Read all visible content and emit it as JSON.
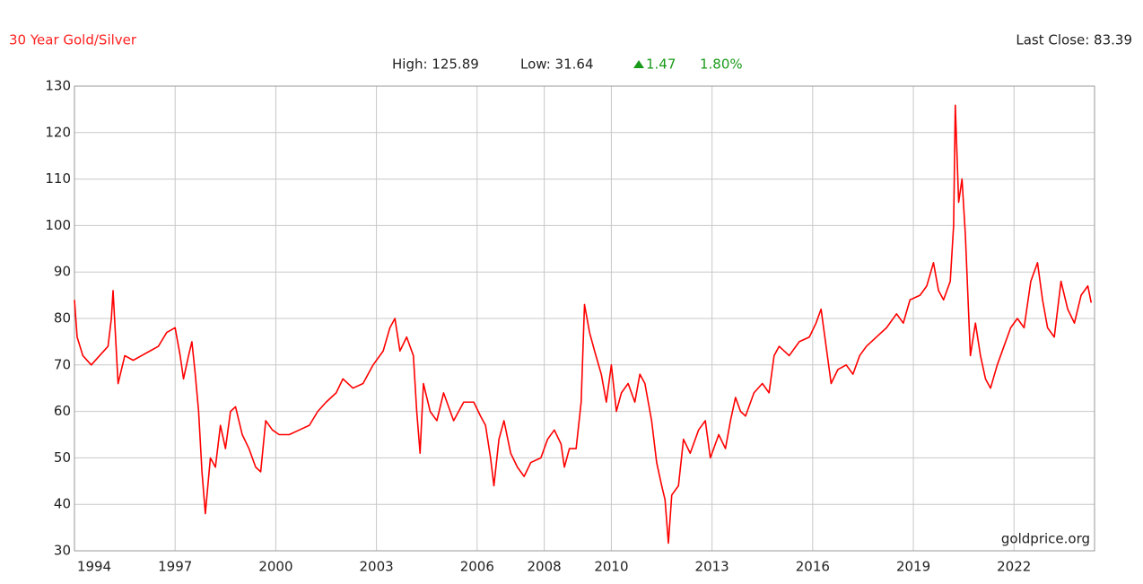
{
  "chart_data": {
    "type": "line",
    "title": "30 Year Gold/Silver",
    "high": "High: 125.89",
    "low": "Low: 31.64",
    "change": "1.47",
    "change_percent": "1.80%",
    "last_close": "Last Close: 83.39",
    "watermark": "goldprice.org",
    "grid": true,
    "xlim": [
      1994,
      2024.4
    ],
    "xticks": [
      1994,
      1997,
      2000,
      2003,
      2006,
      2008,
      2010,
      2013,
      2016,
      2019,
      2022
    ],
    "ylim": [
      30,
      130
    ],
    "yticks": [
      30,
      40,
      50,
      60,
      70,
      80,
      90,
      100,
      110,
      120,
      130
    ],
    "x": [
      1994.0,
      1994.08,
      1994.25,
      1994.5,
      1994.75,
      1995.0,
      1995.1,
      1995.15,
      1995.3,
      1995.5,
      1995.75,
      1996.0,
      1996.25,
      1996.5,
      1996.75,
      1997.0,
      1997.15,
      1997.25,
      1997.4,
      1997.5,
      1997.6,
      1997.7,
      1997.8,
      1997.9,
      1998.05,
      1998.2,
      1998.35,
      1998.5,
      1998.65,
      1998.8,
      1999.0,
      1999.2,
      1999.4,
      1999.55,
      1999.7,
      1999.9,
      2000.1,
      2000.4,
      2000.7,
      2001.0,
      2001.25,
      2001.5,
      2001.8,
      2002.0,
      2002.3,
      2002.6,
      2002.9,
      2003.2,
      2003.4,
      2003.55,
      2003.7,
      2003.9,
      2004.1,
      2004.2,
      2004.3,
      2004.4,
      2004.6,
      2004.8,
      2005.0,
      2005.3,
      2005.6,
      2005.9,
      2006.1,
      2006.25,
      2006.4,
      2006.5,
      2006.65,
      2006.8,
      2007.0,
      2007.2,
      2007.4,
      2007.6,
      2007.9,
      2008.1,
      2008.3,
      2008.5,
      2008.6,
      2008.75,
      2008.95,
      2009.1,
      2009.2,
      2009.35,
      2009.5,
      2009.7,
      2009.85,
      2010.0,
      2010.15,
      2010.3,
      2010.5,
      2010.7,
      2010.85,
      2011.0,
      2011.2,
      2011.35,
      2011.5,
      2011.6,
      2011.7,
      2011.8,
      2012.0,
      2012.15,
      2012.35,
      2012.6,
      2012.8,
      2012.95,
      2013.2,
      2013.4,
      2013.55,
      2013.7,
      2013.85,
      2014.0,
      2014.25,
      2014.5,
      2014.7,
      2014.85,
      2015.0,
      2015.3,
      2015.6,
      2015.9,
      2016.1,
      2016.25,
      2016.4,
      2016.55,
      2016.75,
      2017.0,
      2017.2,
      2017.4,
      2017.6,
      2017.9,
      2018.2,
      2018.5,
      2018.7,
      2018.9,
      2019.2,
      2019.4,
      2019.6,
      2019.75,
      2019.9,
      2020.1,
      2020.2,
      2020.25,
      2020.35,
      2020.45,
      2020.55,
      2020.7,
      2020.85,
      2021.0,
      2021.15,
      2021.3,
      2021.5,
      2021.7,
      2021.9,
      2022.1,
      2022.3,
      2022.5,
      2022.7,
      2022.85,
      2023.0,
      2023.2,
      2023.4,
      2023.6,
      2023.8,
      2024.0,
      2024.2,
      2024.3
    ],
    "series": [
      {
        "color": "#ff0000",
        "values": [
          84,
          76,
          72,
          70,
          72,
          74,
          80,
          86,
          66,
          72,
          71,
          72,
          73,
          74,
          77,
          78,
          72,
          67,
          72,
          75,
          68,
          60,
          47,
          38,
          50,
          48,
          57,
          52,
          60,
          61,
          55,
          52,
          48,
          47,
          58,
          56,
          55,
          55,
          56,
          57,
          60,
          62,
          64,
          67,
          65,
          66,
          70,
          73,
          78,
          80,
          73,
          76,
          72,
          60,
          51,
          66,
          60,
          58,
          64,
          58,
          62,
          62,
          59,
          57,
          50,
          44,
          54,
          58,
          51,
          48,
          46,
          49,
          50,
          54,
          56,
          53,
          48,
          52,
          52,
          62,
          83,
          77,
          73,
          68,
          62,
          70,
          60,
          64,
          66,
          62,
          68,
          66,
          58,
          49,
          44,
          41,
          31.64,
          42,
          44,
          54,
          51,
          56,
          58,
          50,
          55,
          52,
          58,
          63,
          60,
          59,
          64,
          66,
          64,
          72,
          74,
          72,
          75,
          76,
          79,
          82,
          74,
          66,
          69,
          70,
          68,
          72,
          74,
          76,
          78,
          81,
          79,
          84,
          85,
          87,
          92,
          86,
          84,
          88,
          100,
          125.89,
          105,
          110,
          98,
          72,
          79,
          72,
          67,
          65,
          70,
          74,
          78,
          80,
          78,
          88,
          92,
          84,
          78,
          76,
          88,
          82,
          79,
          85,
          87,
          83.39
        ]
      }
    ]
  }
}
